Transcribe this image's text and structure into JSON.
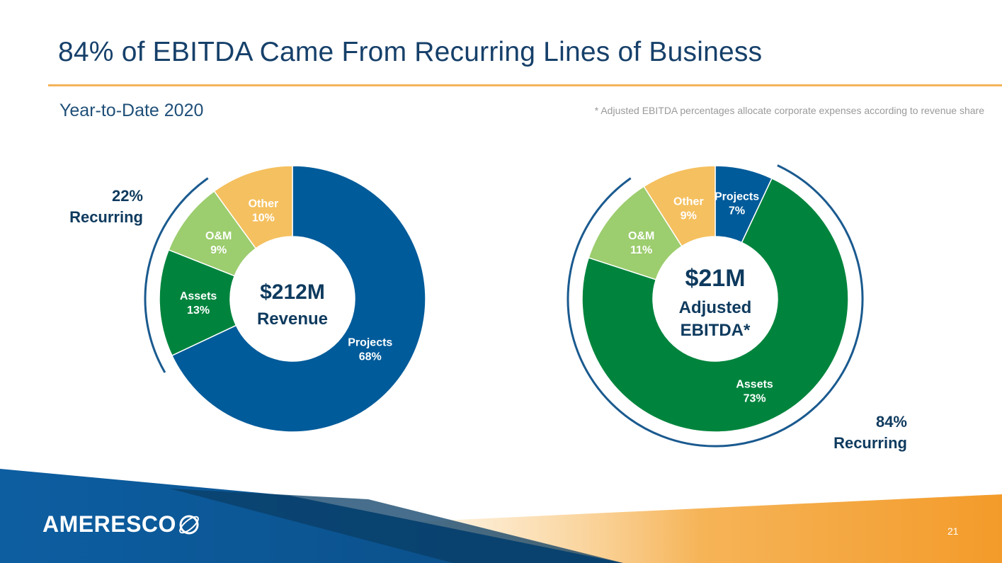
{
  "title": "84% of EBITDA Came From Recurring Lines of Business",
  "subtitle": "Year-to-Date 2020",
  "footnote": "* Adjusted EBITDA percentages allocate corporate expenses according to revenue share",
  "page_number": "21",
  "logo_text": "AMERESCO",
  "colors": {
    "projects": "#005b9a",
    "assets": "#00843d",
    "om": "#9ccd6e",
    "other": "#f5c05f",
    "navy": "#0e3a5e",
    "orange": "#f4b459"
  },
  "chart_data": [
    {
      "type": "pie",
      "title": "$212M Revenue",
      "center_value": "$212M",
      "center_label": [
        "Revenue"
      ],
      "recurring_label": {
        "percent": "22%",
        "text": "Recurring"
      },
      "slices": [
        {
          "name": "Projects",
          "value": 68,
          "label": "68%",
          "color_key": "projects"
        },
        {
          "name": "Assets",
          "value": 13,
          "label": "13%",
          "color_key": "assets"
        },
        {
          "name": "O&M",
          "value": 9,
          "label": "9%",
          "color_key": "om"
        },
        {
          "name": "Other",
          "value": 10,
          "label": "10%",
          "color_key": "other"
        }
      ]
    },
    {
      "type": "pie",
      "title": "$21M Adjusted EBITDA*",
      "center_value": "$21M",
      "center_label": [
        "Adjusted",
        "EBITDA*"
      ],
      "recurring_label": {
        "percent": "84%",
        "text": "Recurring"
      },
      "slices": [
        {
          "name": "Projects",
          "value": 7,
          "label": "7%",
          "color_key": "projects"
        },
        {
          "name": "Assets",
          "value": 73,
          "label": "73%",
          "color_key": "assets"
        },
        {
          "name": "O&M",
          "value": 11,
          "label": "11%",
          "color_key": "om"
        },
        {
          "name": "Other",
          "value": 9,
          "label": "9%",
          "color_key": "other"
        }
      ]
    }
  ]
}
